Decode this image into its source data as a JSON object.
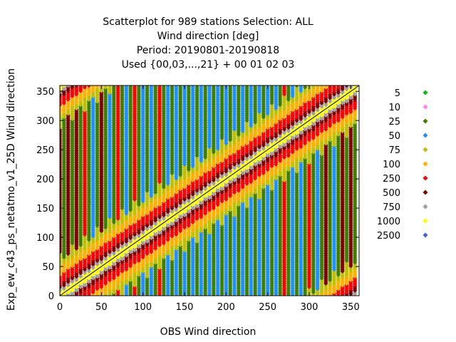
{
  "chart_data": {
    "type": "scatter",
    "title_lines": [
      "Scatterplot for  989 stations Selection: ALL",
      "Wind direction [deg]",
      "Period: 20190801-20190818",
      "Used {00,03,...,21} + 00 01 02 03"
    ],
    "xlabel": "OBS Wind direction",
    "ylabel": "Exp_ew_c43_ps_netatmo_v1_25D Wind direction",
    "xlim": [
      0,
      360
    ],
    "ylim": [
      0,
      360
    ],
    "xticks": [
      0,
      50,
      100,
      150,
      200,
      250,
      300,
      350
    ],
    "yticks": [
      0,
      50,
      100,
      150,
      200,
      250,
      300,
      350
    ],
    "grid": false,
    "legend_position": "right",
    "diagonal_line": true,
    "legend": [
      {
        "label": "5",
        "color": "#00c000"
      },
      {
        "label": "10",
        "color": "#ff80ff"
      },
      {
        "label": "25",
        "color": "#3f7f00"
      },
      {
        "label": "50",
        "color": "#1e90ff"
      },
      {
        "label": "75",
        "color": "#c0c000"
      },
      {
        "label": "100",
        "color": "#ffb000"
      },
      {
        "label": "250",
        "color": "#ff0000"
      },
      {
        "label": "500",
        "color": "#800000"
      },
      {
        "label": "750",
        "color": "#a0a0a0"
      },
      {
        "label": "1000",
        "color": "#ffff00"
      },
      {
        "label": "2500",
        "color": "#4060e0"
      }
    ],
    "obs_columns_x": [
      0,
      5,
      10,
      15,
      20,
      25,
      30,
      35,
      40,
      45,
      50,
      55,
      60,
      65,
      70,
      75,
      80,
      85,
      90,
      95,
      100,
      105,
      110,
      115,
      120,
      125,
      130,
      135,
      140,
      145,
      150,
      155,
      160,
      165,
      170,
      175,
      180,
      185,
      190,
      195,
      200,
      205,
      210,
      215,
      220,
      225,
      230,
      235,
      240,
      245,
      250,
      255,
      260,
      265,
      270,
      275,
      280,
      285,
      290,
      295,
      300,
      305,
      310,
      315,
      320,
      325,
      330,
      335,
      340,
      345,
      350,
      355
    ],
    "column_count_class": [
      "500",
      "25",
      "500",
      "25",
      "500",
      "25",
      "250",
      "25",
      "50",
      "25",
      "500",
      "25",
      "50",
      "25",
      "250",
      "25",
      "50",
      "25",
      "250",
      "25",
      "50",
      "25",
      "50",
      "25",
      "250",
      "25",
      "50",
      "25",
      "50",
      "25",
      "50",
      "25",
      "50",
      "25",
      "50",
      "25",
      "50",
      "25",
      "50",
      "25",
      "50",
      "25",
      "50",
      "25",
      "50",
      "25",
      "50",
      "25",
      "50",
      "25",
      "50",
      "25",
      "50",
      "25",
      "250",
      "25",
      "50",
      "25",
      "50",
      "25",
      "250",
      "25",
      "50",
      "25",
      "500",
      "25",
      "50",
      "25",
      "500",
      "25",
      "500",
      "25"
    ],
    "diagonal_band_halfwidths_deg": {
      "1000": 6,
      "750": 12,
      "500": 20,
      "250": 35,
      "100": 50,
      "75": 60
    }
  }
}
